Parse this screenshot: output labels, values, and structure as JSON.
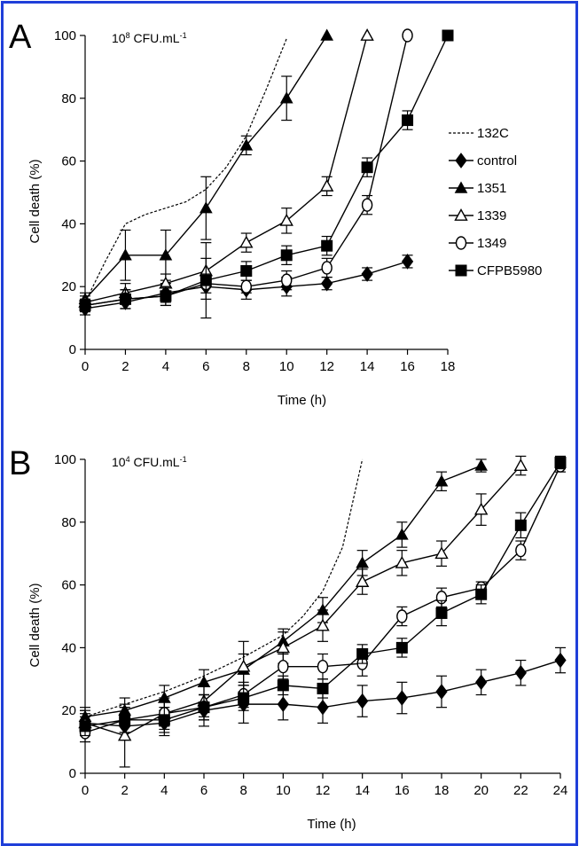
{
  "chart_data": [
    {
      "type": "line",
      "panel": "A",
      "concentration": {
        "base": "10",
        "exp": "8",
        "unit": "CFU.mL",
        "unit_exp": "-1"
      },
      "xlabel": "Time (h)",
      "ylabel": "Cell death (%)",
      "xlim": [
        0,
        18
      ],
      "ylim": [
        0,
        100
      ],
      "xticks": [
        0,
        2,
        4,
        6,
        8,
        10,
        12,
        14,
        16,
        18
      ],
      "yticks": [
        0,
        20,
        40,
        60,
        80,
        100
      ],
      "legend": "right",
      "series": [
        {
          "name": "132C",
          "marker": "none",
          "dashed": true,
          "x": [
            0,
            1,
            2,
            3,
            4,
            5,
            6,
            7,
            8,
            9,
            10
          ],
          "y": [
            15,
            28,
            40,
            43,
            45,
            47,
            51,
            58,
            68,
            83,
            99
          ]
        },
        {
          "name": "control",
          "marker": "diamond",
          "x": [
            0,
            2,
            4,
            6,
            8,
            10,
            12,
            14,
            16
          ],
          "y": [
            13,
            15,
            18,
            20,
            19,
            20,
            21,
            24,
            28
          ],
          "err": [
            2,
            2,
            3,
            4,
            3,
            3,
            2,
            2,
            2
          ]
        },
        {
          "name": "1351",
          "marker": "triangle",
          "x": [
            0,
            2,
            4,
            6,
            8,
            10,
            12
          ],
          "y": [
            16,
            30,
            30,
            45,
            65,
            80,
            100
          ],
          "err": [
            2,
            8,
            8,
            10,
            3,
            7,
            0
          ]
        },
        {
          "name": "1339",
          "marker": "triangle-open",
          "x": [
            0,
            2,
            4,
            6,
            8,
            10,
            12,
            14
          ],
          "y": [
            15,
            18,
            21,
            25,
            34,
            41,
            52,
            100
          ],
          "err": [
            2,
            3,
            3,
            4,
            3,
            4,
            3,
            0
          ]
        },
        {
          "name": "1349",
          "marker": "circle-open",
          "x": [
            0,
            2,
            4,
            6,
            8,
            10,
            12,
            14,
            16
          ],
          "y": [
            14,
            16,
            17,
            21,
            20,
            22,
            26,
            46,
            100
          ],
          "err": [
            2,
            3,
            3,
            3,
            2,
            3,
            3,
            3,
            0
          ]
        },
        {
          "name": "CFPB5980",
          "marker": "square",
          "x": [
            0,
            2,
            4,
            6,
            8,
            10,
            12,
            14,
            16,
            18
          ],
          "y": [
            14,
            16,
            17,
            22,
            25,
            30,
            33,
            58,
            73,
            100
          ],
          "err": [
            2,
            3,
            3,
            12,
            3,
            3,
            3,
            3,
            3,
            0
          ]
        }
      ]
    },
    {
      "type": "line",
      "panel": "B",
      "concentration": {
        "base": "10",
        "exp": "4",
        "unit": "CFU.mL",
        "unit_exp": "-1"
      },
      "xlabel": "Time (h)",
      "ylabel": "Cell death (%)",
      "xlim": [
        0,
        24
      ],
      "ylim": [
        0,
        100
      ],
      "xticks": [
        0,
        2,
        4,
        6,
        8,
        10,
        12,
        14,
        16,
        18,
        20,
        22,
        24
      ],
      "yticks": [
        0,
        20,
        40,
        60,
        80,
        100
      ],
      "series": [
        {
          "name": "132C",
          "marker": "none",
          "dashed": true,
          "x": [
            0,
            2,
            4,
            6,
            8,
            10,
            11,
            12,
            13,
            14
          ],
          "y": [
            18,
            22,
            26,
            31,
            37,
            44,
            50,
            58,
            72,
            100
          ]
        },
        {
          "name": "control",
          "marker": "diamond",
          "x": [
            0,
            2,
            4,
            6,
            8,
            10,
            12,
            14,
            16,
            18,
            20,
            22,
            24
          ],
          "y": [
            16,
            15,
            16,
            20,
            22,
            22,
            21,
            23,
            24,
            26,
            29,
            32,
            36
          ],
          "err": [
            4,
            4,
            4,
            5,
            6,
            5,
            5,
            5,
            5,
            5,
            4,
            4,
            4
          ]
        },
        {
          "name": "1351",
          "marker": "triangle",
          "x": [
            0,
            2,
            4,
            6,
            8,
            10,
            12,
            14,
            16,
            18,
            20
          ],
          "y": [
            18,
            20,
            24,
            29,
            33,
            42,
            52,
            67,
            76,
            93,
            98
          ],
          "err": [
            3,
            4,
            4,
            4,
            5,
            4,
            4,
            4,
            4,
            3,
            2
          ]
        },
        {
          "name": "1339",
          "marker": "triangle-open",
          "x": [
            0,
            2,
            4,
            6,
            8,
            10,
            12,
            14,
            16,
            18,
            20,
            22
          ],
          "y": [
            16,
            12,
            19,
            23,
            34,
            40,
            47,
            61,
            67,
            70,
            84,
            98
          ],
          "err": [
            3,
            10,
            5,
            5,
            8,
            5,
            5,
            4,
            4,
            4,
            5,
            3
          ]
        },
        {
          "name": "1349",
          "marker": "circle-open",
          "x": [
            0,
            2,
            4,
            6,
            8,
            10,
            12,
            14,
            16,
            18,
            20,
            22,
            24
          ],
          "y": [
            13,
            17,
            19,
            21,
            25,
            34,
            34,
            35,
            50,
            56,
            59,
            71,
            98
          ],
          "err": [
            3,
            4,
            4,
            4,
            4,
            4,
            4,
            4,
            3,
            3,
            2,
            3,
            2
          ]
        },
        {
          "name": "CFPB5980",
          "marker": "square",
          "x": [
            0,
            2,
            4,
            6,
            8,
            10,
            12,
            14,
            16,
            18,
            20,
            22,
            24
          ],
          "y": [
            15,
            17,
            17,
            21,
            24,
            28,
            27,
            38,
            40,
            51,
            57,
            79,
            99
          ],
          "err": [
            3,
            4,
            4,
            4,
            4,
            3,
            3,
            3,
            3,
            4,
            3,
            4,
            2
          ]
        }
      ]
    }
  ]
}
